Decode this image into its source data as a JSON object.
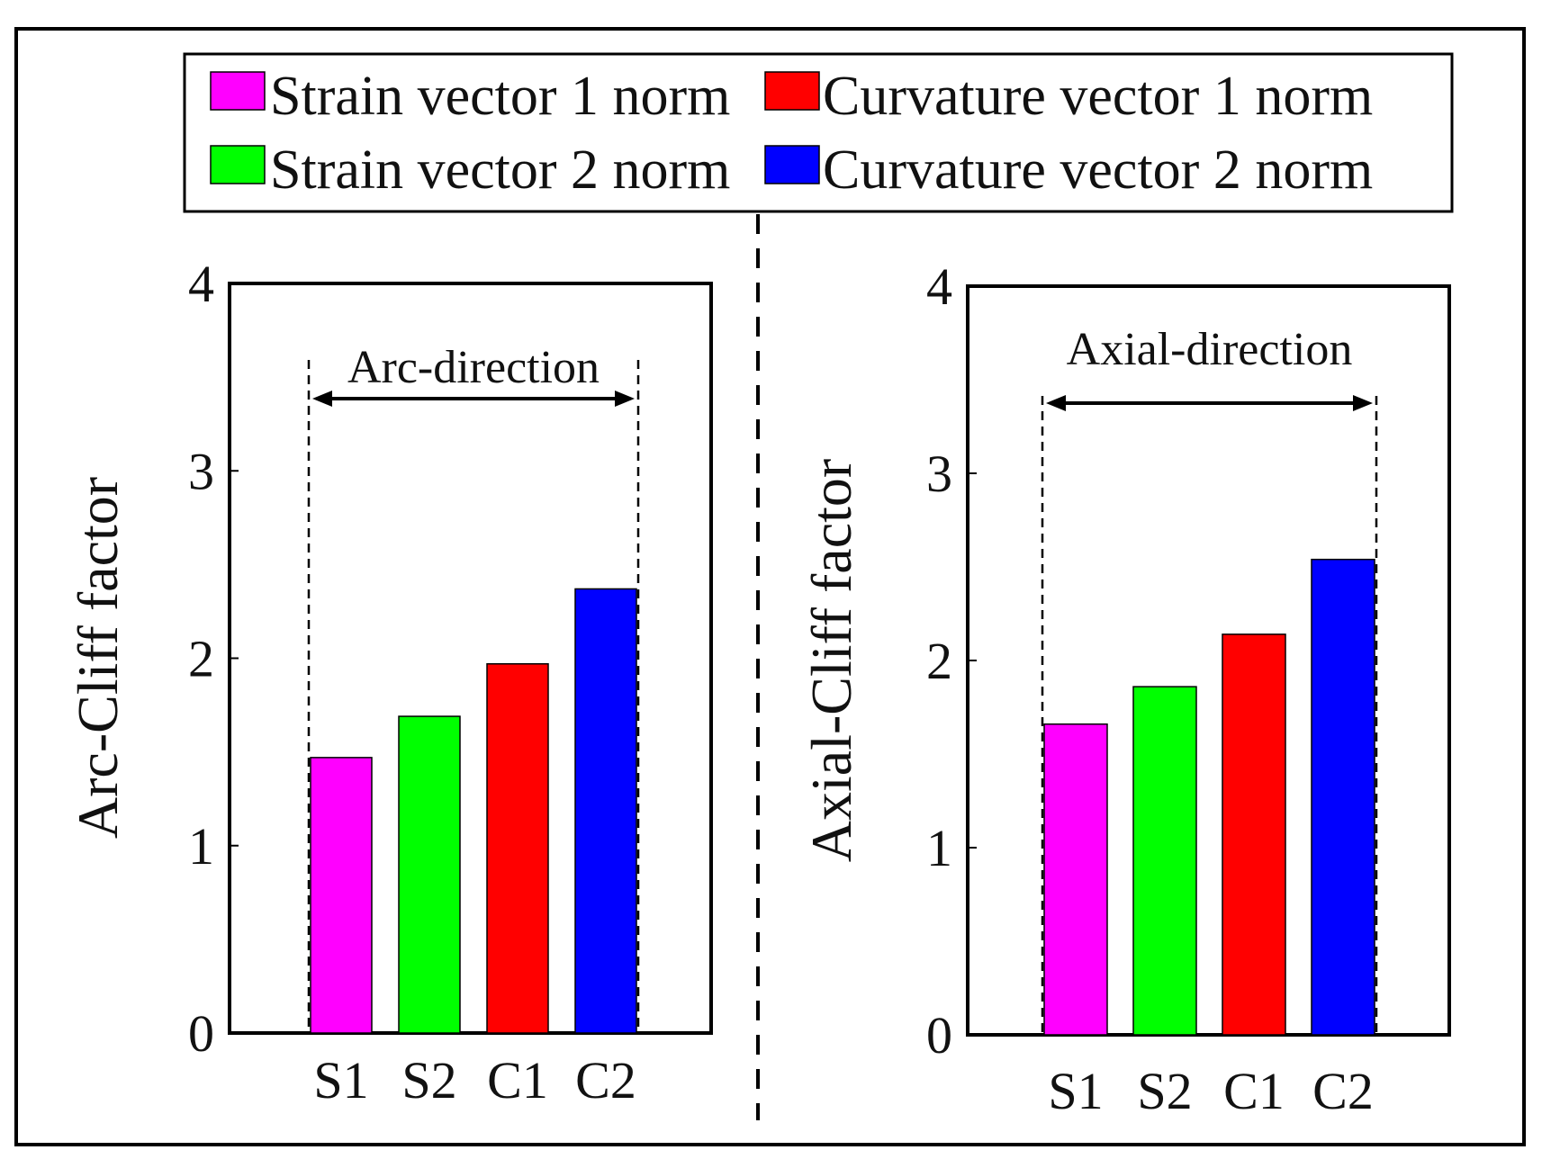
{
  "legend": [
    {
      "label": "Strain vector 1 norm",
      "color": "#ff00ff"
    },
    {
      "label": "Curvature vector 1 norm",
      "color": "#ff0000"
    },
    {
      "label": "Strain vector 2 norm",
      "color": "#00ff00"
    },
    {
      "label": "Curvature vector 2 norm",
      "color": "#0000ff"
    }
  ],
  "chart_data": [
    {
      "type": "bar",
      "ylabel": "Arc-Cliff factor",
      "xlabel": "",
      "categories": [
        "S1",
        "S2",
        "C1",
        "C2"
      ],
      "values": [
        1.47,
        1.69,
        1.97,
        2.37
      ],
      "colors": [
        "#ff00ff",
        "#00ff00",
        "#ff0000",
        "#0000ff"
      ],
      "ylim": [
        0,
        4
      ],
      "yticks": [
        "0",
        "1",
        "2",
        "3",
        "4"
      ],
      "annotation": "Arc-direction"
    },
    {
      "type": "bar",
      "ylabel": "Axial-Cliff factor",
      "xlabel": "",
      "categories": [
        "S1",
        "S2",
        "C1",
        "C2"
      ],
      "values": [
        1.66,
        1.86,
        2.14,
        2.54
      ],
      "colors": [
        "#ff00ff",
        "#00ff00",
        "#ff0000",
        "#0000ff"
      ],
      "ylim": [
        0,
        4
      ],
      "yticks": [
        "0",
        "1",
        "2",
        "3",
        "4"
      ],
      "annotation": "Axial-direction"
    }
  ]
}
